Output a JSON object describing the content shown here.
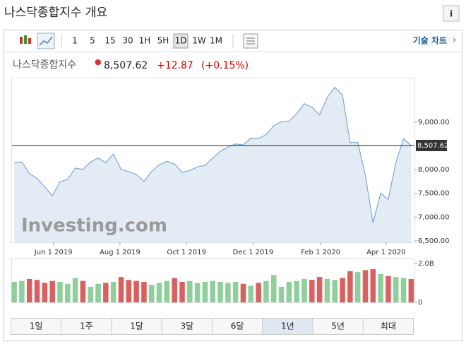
{
  "header": {
    "title": "나스닥종합지수 개요",
    "info_icon": "i"
  },
  "toolbar": {
    "intervals": [
      "1",
      "5",
      "15",
      "30",
      "1H",
      "5H",
      "1D",
      "1W",
      "1M"
    ],
    "technical_chart": "기술 차트"
  },
  "quote": {
    "name": "나스닥종합지수",
    "price": "8,507.62",
    "change": "+12.87",
    "change_pct": "(+0.15%)"
  },
  "watermark": "Investing.com",
  "ranges": [
    "1일",
    "1주",
    "1달",
    "3달",
    "6달",
    "1년",
    "5년",
    "최대"
  ],
  "chart_data": [
    {
      "type": "area",
      "color": "#7fa8cf",
      "fill": "#e3ecf5",
      "x": [
        "2019-04-26",
        "2019-05-03",
        "2019-05-10",
        "2019-05-17",
        "2019-05-24",
        "2019-05-31",
        "2019-06-07",
        "2019-06-14",
        "2019-06-21",
        "2019-06-28",
        "2019-07-05",
        "2019-07-12",
        "2019-07-19",
        "2019-07-26",
        "2019-08-02",
        "2019-08-09",
        "2019-08-16",
        "2019-08-23",
        "2019-08-30",
        "2019-09-06",
        "2019-09-13",
        "2019-09-20",
        "2019-09-27",
        "2019-10-04",
        "2019-10-11",
        "2019-10-18",
        "2019-10-25",
        "2019-11-01",
        "2019-11-08",
        "2019-11-15",
        "2019-11-22",
        "2019-11-29",
        "2019-12-06",
        "2019-12-13",
        "2019-12-20",
        "2019-12-27",
        "2020-01-03",
        "2020-01-10",
        "2020-01-17",
        "2020-01-24",
        "2020-01-31",
        "2020-02-07",
        "2020-02-14",
        "2020-02-21",
        "2020-02-28",
        "2020-03-06",
        "2020-03-13",
        "2020-03-20",
        "2020-03-27",
        "2020-04-03",
        "2020-04-10",
        "2020-04-17",
        "2020-04-24"
      ],
      "values": [
        8146,
        8164,
        7917,
        7816,
        7637,
        7453,
        7742,
        7797,
        8031,
        8006,
        8161,
        8244,
        8146,
        8330,
        8004,
        7959,
        7896,
        7751,
        7963,
        8103,
        8176,
        8118,
        7940,
        7982,
        8057,
        8089,
        8243,
        8386,
        8475,
        8540,
        8520,
        8665,
        8656,
        8735,
        8925,
        9007,
        9020,
        9179,
        9389,
        9315,
        9151,
        9520,
        9731,
        9577,
        8567,
        8575,
        7875,
        6880,
        7502,
        7373,
        8153,
        8650,
        8507.62
      ],
      "xlim": [
        "2019-04-24",
        "2020-04-27"
      ],
      "xticks": [
        {
          "value": "2019-06-01",
          "label": "Jun 1 2019"
        },
        {
          "value": "2019-08-01",
          "label": "Aug 1 2019"
        },
        {
          "value": "2019-10-01",
          "label": "Oct 1 2019"
        },
        {
          "value": "2019-12-01",
          "label": "Dec 1 2019"
        },
        {
          "value": "2020-02-01",
          "label": "Feb 1 2020"
        },
        {
          "value": "2020-04-01",
          "label": "Apr 1 2020"
        }
      ],
      "ylim": [
        6470,
        9920
      ],
      "yticks": [
        {
          "value": 6500,
          "label": "6,500.00"
        },
        {
          "value": 7000,
          "label": "7,000.00"
        },
        {
          "value": 7500,
          "label": "7,500.00"
        },
        {
          "value": 8000,
          "label": "8,000.00"
        },
        {
          "value": 9000,
          "label": "9,000.00"
        }
      ],
      "reference_line": {
        "value": 8507.62,
        "label": "8,507.62"
      }
    },
    {
      "type": "bar",
      "up_color": "#8fcf9c",
      "down_color": "#d9605f",
      "values": [
        1.05,
        1.1,
        1.2,
        1.15,
        1.0,
        1.1,
        1.05,
        0.95,
        1.25,
        1.1,
        0.8,
        0.95,
        1.0,
        1.05,
        1.3,
        1.15,
        1.1,
        1.05,
        0.9,
        1.0,
        1.1,
        1.25,
        1.05,
        1.1,
        1.0,
        1.05,
        1.1,
        1.05,
        1.0,
        1.05,
        0.95,
        0.85,
        1.0,
        1.1,
        1.4,
        0.8,
        1.05,
        1.1,
        1.2,
        1.15,
        1.3,
        1.2,
        1.15,
        1.25,
        1.6,
        1.55,
        1.65,
        1.7,
        1.45,
        1.35,
        1.3,
        1.25,
        1.2
      ],
      "ylim": [
        0,
        2.1
      ],
      "yticks": [
        0,
        {
          "value": 2,
          "label": "2.0B"
        }
      ]
    }
  ]
}
